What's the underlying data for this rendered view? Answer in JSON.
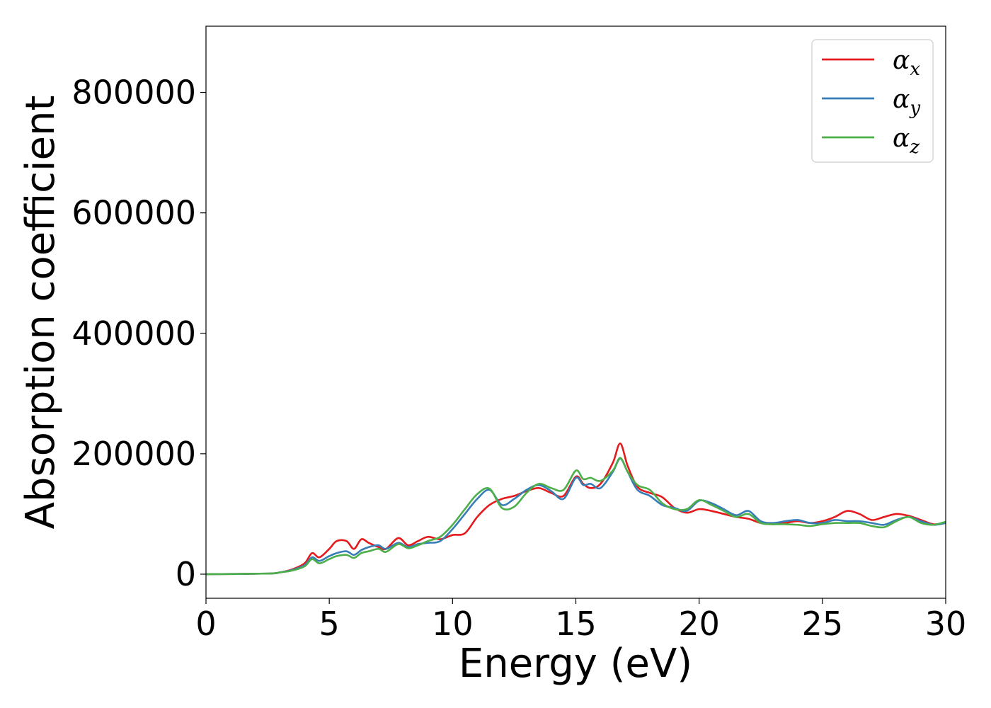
{
  "chart_data": {
    "type": "line",
    "title": "",
    "xlabel": "Energy (eV)",
    "ylabel": "Absorption coefficient",
    "xlim": [
      0,
      30
    ],
    "ylim": [
      -40000,
      910000
    ],
    "xticks": [
      0,
      5,
      10,
      15,
      20,
      25,
      30
    ],
    "yticks": [
      0,
      200000,
      400000,
      600000,
      800000
    ],
    "xtick_labels": [
      "0",
      "5",
      "10",
      "15",
      "20",
      "25",
      "30"
    ],
    "ytick_labels": [
      "0",
      "200000",
      "400000",
      "600000",
      "800000"
    ],
    "grid": false,
    "legend_position": "top-right",
    "series": [
      {
        "name": "α_x",
        "symbol": "α",
        "subscript": "x",
        "color": "#e41a1c",
        "x": [
          0,
          2.5,
          3,
          3.5,
          4,
          4.3,
          4.6,
          5,
          5.3,
          5.7,
          6,
          6.3,
          6.6,
          7,
          7.3,
          7.8,
          8.2,
          8.6,
          9,
          9.5,
          10,
          10.5,
          11,
          11.5,
          12,
          12.5,
          13,
          13.5,
          14,
          14.5,
          15,
          15.3,
          15.6,
          16,
          16.5,
          16.8,
          17.1,
          17.5,
          18,
          18.5,
          19,
          19.5,
          20,
          20.5,
          21,
          21.5,
          22,
          22.5,
          23,
          23.5,
          24,
          24.5,
          25,
          25.5,
          26,
          26.5,
          27,
          27.5,
          28,
          28.5,
          29,
          29.5,
          30
        ],
        "y": [
          0,
          1000,
          3000,
          8000,
          18000,
          35000,
          28000,
          42000,
          55000,
          55000,
          42000,
          58000,
          52000,
          45000,
          42000,
          60000,
          48000,
          55000,
          62000,
          58000,
          65000,
          68000,
          95000,
          115000,
          125000,
          130000,
          138000,
          143000,
          135000,
          130000,
          162000,
          150000,
          143000,
          150000,
          185000,
          217000,
          180000,
          145000,
          135000,
          128000,
          110000,
          102000,
          108000,
          105000,
          100000,
          95000,
          92000,
          85000,
          83000,
          85000,
          88000,
          85000,
          88000,
          95000,
          105000,
          100000,
          90000,
          95000,
          100000,
          97000,
          90000,
          83000,
          85000
        ]
      },
      {
        "name": "α_y",
        "symbol": "α",
        "subscript": "y",
        "color": "#377eb8",
        "x": [
          0,
          2.5,
          3,
          3.5,
          4,
          4.3,
          4.6,
          5,
          5.3,
          5.7,
          6,
          6.3,
          6.6,
          7,
          7.3,
          7.8,
          8.2,
          8.6,
          9,
          9.5,
          10,
          10.5,
          11,
          11.5,
          12,
          12.5,
          13,
          13.5,
          14,
          14.5,
          15,
          15.3,
          15.6,
          16,
          16.5,
          16.8,
          17.1,
          17.5,
          18,
          18.5,
          19,
          19.5,
          20,
          20.5,
          21,
          21.5,
          22,
          22.5,
          23,
          23.5,
          24,
          24.5,
          25,
          25.5,
          26,
          26.5,
          27,
          27.5,
          28,
          28.5,
          29,
          29.5,
          30
        ],
        "y": [
          0,
          1000,
          3000,
          7000,
          15000,
          28000,
          22000,
          30000,
          35000,
          38000,
          32000,
          40000,
          45000,
          48000,
          42000,
          52000,
          45000,
          50000,
          52000,
          55000,
          75000,
          100000,
          125000,
          140000,
          115000,
          125000,
          140000,
          148000,
          138000,
          125000,
          160000,
          148000,
          150000,
          143000,
          170000,
          192000,
          170000,
          140000,
          130000,
          115000,
          110000,
          105000,
          122000,
          118000,
          108000,
          98000,
          105000,
          88000,
          85000,
          88000,
          90000,
          85000,
          85000,
          90000,
          88000,
          88000,
          85000,
          82000,
          90000,
          95000,
          88000,
          82000,
          85000
        ]
      },
      {
        "name": "α_z",
        "symbol": "α",
        "subscript": "z",
        "color": "#4daf4a",
        "x": [
          0,
          2.5,
          3,
          3.5,
          4,
          4.3,
          4.6,
          5,
          5.3,
          5.7,
          6,
          6.3,
          6.6,
          7,
          7.3,
          7.8,
          8.2,
          8.6,
          9,
          9.5,
          10,
          10.5,
          11,
          11.5,
          12,
          12.5,
          13,
          13.5,
          14,
          14.5,
          15,
          15.3,
          15.6,
          16,
          16.5,
          16.8,
          17.1,
          17.5,
          18,
          18.5,
          19,
          19.5,
          20,
          20.5,
          21,
          21.5,
          22,
          22.5,
          23,
          23.5,
          24,
          24.5,
          25,
          25.5,
          26,
          26.5,
          27,
          27.5,
          28,
          28.5,
          29,
          29.5,
          30
        ],
        "y": [
          0,
          1000,
          3000,
          6000,
          13000,
          25000,
          18000,
          25000,
          30000,
          32000,
          27000,
          35000,
          38000,
          42000,
          37000,
          50000,
          43000,
          48000,
          55000,
          62000,
          82000,
          108000,
          133000,
          142000,
          110000,
          112000,
          135000,
          150000,
          143000,
          140000,
          172000,
          158000,
          160000,
          155000,
          172000,
          193000,
          170000,
          148000,
          140000,
          118000,
          108000,
          108000,
          123000,
          115000,
          105000,
          95000,
          100000,
          85000,
          83000,
          83000,
          82000,
          80000,
          83000,
          85000,
          85000,
          85000,
          80000,
          78000,
          88000,
          95000,
          85000,
          82000,
          87000
        ]
      }
    ]
  }
}
